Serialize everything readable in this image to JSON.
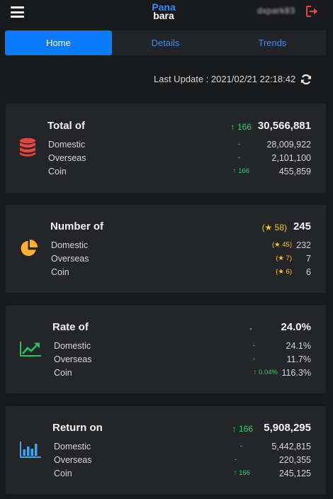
{
  "header": {
    "logo_line1": "Pana",
    "logo_line2": "bara",
    "username": "dxpark83",
    "menu_icon": "hamburger-icon",
    "logout_icon": "logout-icon"
  },
  "tabs": [
    {
      "label": "Home",
      "active": true
    },
    {
      "label": "Details",
      "active": false
    },
    {
      "label": "Trends",
      "active": false
    }
  ],
  "update": {
    "text": "Last Update : 2021/02/21 22:18:42",
    "refresh_icon": "refresh-icon"
  },
  "cards": {
    "total": {
      "icon": "database-icon",
      "title": "Total of",
      "change": "↑ 166",
      "value": "30,566,881",
      "rows": [
        {
          "label": "Domestic",
          "change": "-",
          "value": "28,009,922"
        },
        {
          "label": "Overseas",
          "change": "-",
          "value": "2,101,100"
        },
        {
          "label": "Coin",
          "change": "↑ 166",
          "value": "455,859"
        }
      ]
    },
    "number": {
      "icon": "pie-chart-icon",
      "title": "Number of",
      "change": "(★ 58)",
      "value": "245",
      "rows": [
        {
          "label": "Domestic",
          "change": "(★ 45)",
          "value": "232"
        },
        {
          "label": "Overseas",
          "change": "(★ 7)",
          "value": "7"
        },
        {
          "label": "Coin",
          "change": "(★ 6)",
          "value": "6"
        }
      ]
    },
    "rate": {
      "icon": "trend-up-icon",
      "title": "Rate of",
      "change": "-",
      "value": "24.0%",
      "rows": [
        {
          "label": "Domestic",
          "change": "-",
          "value": "24.1%"
        },
        {
          "label": "Overseas",
          "change": "-",
          "value": "11.7%"
        },
        {
          "label": "Coin",
          "change": "↑ 0.04%",
          "value": "116.3%"
        }
      ]
    },
    "return": {
      "icon": "bar-chart-icon",
      "title": "Return on",
      "change": "↑ 166",
      "value": "5,908,295",
      "rows": [
        {
          "label": "Domestic",
          "change": "-",
          "value": "5,442,815"
        },
        {
          "label": "Overseas",
          "change": "-",
          "value": "220,355"
        },
        {
          "label": "Coin",
          "change": "↑ 166",
          "value": "245,125"
        }
      ]
    }
  },
  "colors": {
    "background": "#18191b",
    "card": "#242528",
    "accent_blue": "#0a7bff",
    "up_green": "#29d36a",
    "star_gold": "#ffc61a",
    "db_red": "#e8433f",
    "pie_orange": "#ffb02e",
    "trend_green": "#22c55e",
    "bar_blue": "#38a9f0"
  }
}
